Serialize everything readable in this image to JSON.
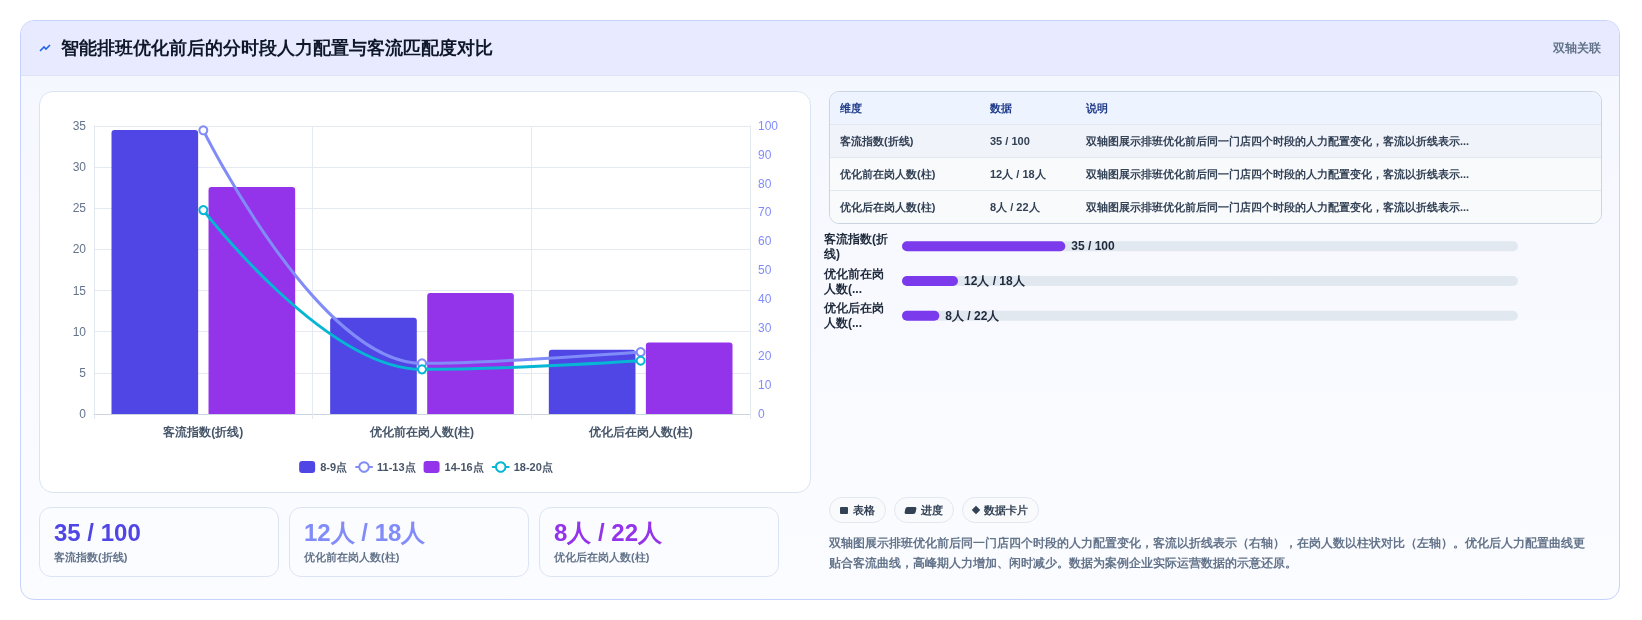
{
  "chart_data": [
    {
      "type": "bar",
      "categories": [
        "客流指数(折线)",
        "优化前在岗人数(柱)",
        "优化后在岗人数(柱)"
      ],
      "series": [
        {
          "name": "8-9点",
          "type": "bar",
          "color": "#4f46e5",
          "values": [
            34.5,
            11.7,
            7.8
          ]
        },
        {
          "name": "11-13点",
          "type": "line",
          "axis": "y2",
          "color": "#818cf8",
          "values": [
            98.5,
            17.6,
            21.5
          ]
        },
        {
          "name": "14-16点",
          "type": "bar",
          "color": "#9333ea",
          "values": [
            27.6,
            14.7,
            8.7
          ]
        },
        {
          "name": "18-20点",
          "type": "line",
          "axis": "y2",
          "color": "#06b6d4",
          "values": [
            70.8,
            15.5,
            18.5
          ]
        }
      ],
      "ylim": [
        0,
        35
      ],
      "yticks": [
        0,
        5,
        10,
        15,
        20,
        25,
        30,
        35
      ],
      "y2lim": [
        0,
        100
      ],
      "y2ticks": [
        0,
        10,
        20,
        30,
        40,
        50,
        60,
        70,
        80,
        90,
        100
      ],
      "grid": true,
      "legend": "bottom",
      "marker": "circle",
      "line_style": "solid"
    },
    {
      "type": "bar",
      "orientation": "horizontal",
      "categories": [
        "客流指数(折线)",
        "优化前在岗人数(...",
        "优化后在岗人数(..."
      ],
      "values": [
        35,
        12,
        8
      ],
      "xlim": [
        0,
        132
      ],
      "tick_labels": false,
      "value_labels": [
        "35 / 100",
        "12人 / 18人",
        "8人 / 22人"
      ],
      "color": "#7c3aed"
    },
    {
      "type": "other",
      "annotations": [
        "维度",
        "数据",
        "说明",
        "客流指数(折线)",
        "35 / 100",
        "双轴图展示排班优化前后同一门店四个时段的人力配置变化，客流以折线表示...",
        "优化前在岗人数(柱)",
        "12人 / 18人",
        "双轴图展示排班优化前后同一门店四个时段的人力配置变化，客流以折线表示...",
        "优化后在岗人数(柱)",
        "8人 / 22人",
        "双轴图展示排班优化前后同一门店四个时段的人力配置变化，客流以折线表示..."
      ]
    },
    {
      "type": "other",
      "annotations": [
        "35 / 100",
        "客流指数(折线)",
        "12人 / 18人",
        "优化前在岗人数(柱)",
        "8人 / 22人",
        "优化后在岗人数(柱)"
      ],
      "colors": [
        "#4f46e5",
        "#818cf8",
        "#9333ea"
      ]
    },
    {
      "type": "other",
      "title": "智能排班优化前后的分时段人力配置与客流匹配度对比",
      "subtitle": "双轴关联"
    },
    {
      "type": "other",
      "annotations": [
        "表格",
        "进度",
        "数据卡片",
        "双轴图展示排班优化前后同一门店四个时段的人力配置变化，客流以折线表示（右轴），在岗人数以柱状对比（左轴）。优化后人力配置曲线更贴合客流曲线，高峰期人力增加、闲时减少。数据为案例企业实际运营数据的示意还原。"
      ]
    }
  ]
}
